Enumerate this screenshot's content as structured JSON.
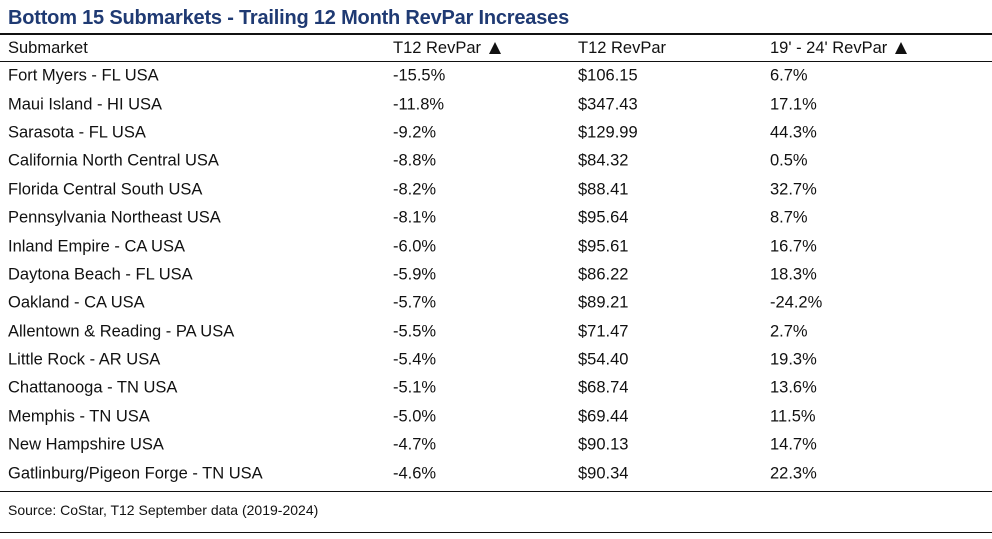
{
  "title": "Bottom 15 Submarkets - Trailing 12 Month RevPar Increases",
  "headers": [
    "Submarket",
    "T12 RevPar",
    "T12 RevPar",
    "19' - 24' RevPar"
  ],
  "rows": [
    [
      "Fort Myers - FL USA",
      "-15.5%",
      "$106.15",
      "6.7%"
    ],
    [
      "Maui Island - HI USA",
      "-11.8%",
      "$347.43",
      "17.1%"
    ],
    [
      "Sarasota - FL USA",
      "-9.2%",
      "$129.99",
      "44.3%"
    ],
    [
      "California North Central USA",
      "-8.8%",
      "$84.32",
      "0.5%"
    ],
    [
      "Florida Central South USA",
      "-8.2%",
      "$88.41",
      "32.7%"
    ],
    [
      "Pennsylvania Northeast USA",
      "-8.1%",
      "$95.64",
      "8.7%"
    ],
    [
      "Inland Empire - CA USA",
      "-6.0%",
      "$95.61",
      "16.7%"
    ],
    [
      "Daytona Beach - FL USA",
      "-5.9%",
      "$86.22",
      "18.3%"
    ],
    [
      "Oakland - CA USA",
      "-5.7%",
      "$89.21",
      "-24.2%"
    ],
    [
      "Allentown & Reading - PA USA",
      "-5.5%",
      "$71.47",
      "2.7%"
    ],
    [
      "Little Rock - AR USA",
      "-5.4%",
      "$54.40",
      "19.3%"
    ],
    [
      "Chattanooga - TN USA",
      "-5.1%",
      "$68.74",
      "13.6%"
    ],
    [
      "Memphis - TN USA",
      "-5.0%",
      "$69.44",
      "11.5%"
    ],
    [
      "New Hampshire USA",
      "-4.7%",
      "$90.13",
      "14.7%"
    ],
    [
      "Gatlinburg/Pigeon Forge - TN USA",
      "-4.6%",
      "$90.34",
      "22.3%"
    ]
  ],
  "source": "Source: CoStar, T12 September data (2019-2024)"
}
